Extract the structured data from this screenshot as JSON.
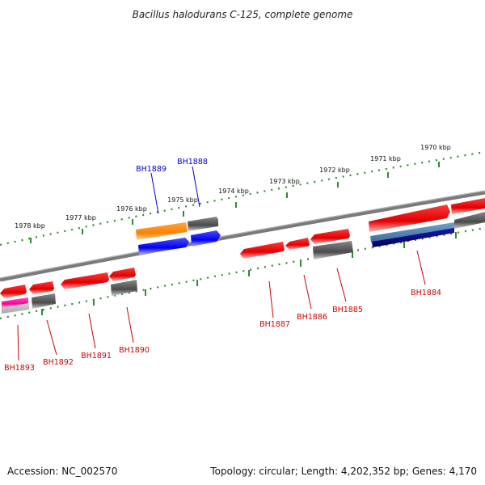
{
  "title": "Bacillus halodurans C-125, complete genome",
  "footer": {
    "accession": "Accession: NC_002570",
    "summary": "Topology: circular; Length: 4,202,352 bp; Genes: 4,170"
  },
  "scale_labels": [
    "1970 kbp",
    "1971 kbp",
    "1972 kbp",
    "1973 kbp",
    "1974 kbp",
    "1975 kbp",
    "1976 kbp",
    "1977 kbp",
    "1978 kbp"
  ],
  "gene_labels": [
    {
      "name": "BH1884",
      "color": "#cc0000"
    },
    {
      "name": "BH1885",
      "color": "#cc0000"
    },
    {
      "name": "BH1886",
      "color": "#cc0000"
    },
    {
      "name": "BH1887",
      "color": "#cc0000"
    },
    {
      "name": "BH1888",
      "color": "#0000cc"
    },
    {
      "name": "BH1889",
      "color": "#0000cc"
    },
    {
      "name": "BH1890",
      "color": "#cc0000"
    },
    {
      "name": "BH1891",
      "color": "#cc0000"
    },
    {
      "name": "BH1892",
      "color": "#cc0000"
    },
    {
      "name": "BH1893",
      "color": "#cc0000"
    }
  ],
  "colors": {
    "backbone": "#7a7a7a",
    "tick": "#2e8b2e",
    "gene_red": "#ff1a1a",
    "gene_gray": "#666666",
    "gene_orange": "#ff8c00",
    "gene_blue": "#1a1aff",
    "gene_magenta": "#ff1aa8",
    "gene_steelblue": "#4682b4",
    "gene_navy": "#0a0a80"
  }
}
